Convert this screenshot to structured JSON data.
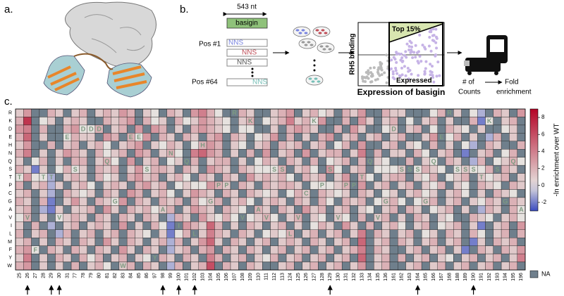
{
  "panel_labels": [
    "a.",
    "b.",
    "c."
  ],
  "schematic": {
    "length": "543 nt",
    "gene": "basigin",
    "first_position": "Pos #1",
    "last_position": "Pos #64",
    "codon": "NNS",
    "y_axis": "RH5 binding",
    "x_axis": "Expression of basigin",
    "gate_top": "Top 15%",
    "gate_expressed": "Expressed",
    "counts": [
      "# of",
      "Counts"
    ],
    "enrichment": [
      "Fold",
      "enrichment"
    ]
  },
  "heatmap": {
    "type": "heatmap",
    "positions": [
      25,
      26,
      27,
      28,
      29,
      30,
      31,
      77,
      78,
      79,
      80,
      81,
      82,
      83,
      84,
      85,
      86,
      97,
      98,
      99,
      100,
      101,
      102,
      103,
      104,
      105,
      106,
      107,
      108,
      109,
      110,
      111,
      112,
      113,
      124,
      125,
      126,
      127,
      128,
      129,
      130,
      131,
      132,
      133,
      134,
      135,
      136,
      161,
      162,
      163,
      164,
      165,
      166,
      167,
      168,
      188,
      189,
      190,
      191,
      192,
      193,
      194,
      195,
      196
    ],
    "residues": [
      "R",
      "K",
      "D",
      "E",
      "H",
      "N",
      "Q",
      "S",
      "T",
      "P",
      "C",
      "G",
      "A",
      "V",
      "I",
      "L",
      "M",
      "F",
      "Y",
      "W"
    ],
    "wild_type": [
      "T",
      "V",
      "F",
      "T",
      "T",
      "V",
      "E",
      "S",
      "D",
      "D",
      "D",
      "Q",
      "G",
      "W",
      "E",
      "E",
      "S",
      "Y",
      "A",
      "N",
      "I",
      "Q",
      "L",
      "H",
      "G",
      "P",
      "P",
      "R",
      "V",
      "K",
      "A",
      "V",
      "S",
      "S",
      "L",
      "V",
      "C",
      "K",
      "P",
      "S",
      "V",
      "P",
      "P",
      "T",
      "Q",
      "V",
      "G",
      "D",
      "S",
      "S",
      "S",
      "G",
      "Q",
      "E",
      "R",
      "S",
      "S",
      "S",
      "T",
      "K",
      "S",
      "G",
      "Q",
      "A"
    ],
    "values": [
      [
        1,
        3,
        null,
        null,
        2,
        1,
        null,
        1,
        2,
        null,
        1,
        2,
        1,
        3,
        2,
        null,
        1,
        0,
        null,
        2,
        1,
        null,
        3,
        4,
        2,
        0,
        null,
        null,
        2,
        1,
        null,
        null,
        1,
        2,
        3,
        null,
        1,
        2,
        0,
        1,
        null,
        2,
        1,
        3,
        null,
        null,
        2,
        1,
        1,
        null,
        null,
        null,
        0,
        2,
        null,
        1,
        null,
        0,
        -1,
        null,
        2,
        1,
        null,
        3
      ],
      [
        2,
        7,
        null,
        0,
        1,
        null,
        1,
        2,
        1,
        null,
        null,
        2,
        1,
        2,
        3,
        null,
        2,
        0,
        1,
        null,
        2,
        0,
        1,
        3,
        2,
        1,
        0,
        null,
        1,
        2,
        null,
        0,
        1,
        2,
        4,
        1,
        2,
        0,
        3,
        null,
        null,
        2,
        null,
        3,
        1,
        null,
        1,
        2,
        null,
        0,
        null,
        1,
        2,
        null,
        1,
        null,
        null,
        2,
        -2,
        0,
        null,
        1,
        2,
        null
      ],
      [
        3,
        4,
        null,
        2,
        null,
        null,
        2,
        3,
        0,
        0,
        2,
        null,
        1,
        2,
        null,
        3,
        null,
        3,
        2,
        null,
        1,
        null,
        2,
        3,
        2,
        1,
        0,
        null,
        0,
        0,
        null,
        null,
        1,
        null,
        2,
        3,
        2,
        1,
        null,
        null,
        2,
        null,
        3,
        1,
        null,
        null,
        0,
        1,
        null,
        1,
        2,
        null,
        0,
        null,
        2,
        1,
        0,
        null,
        1,
        null,
        null,
        0,
        1,
        null
      ],
      [
        2,
        5,
        null,
        1,
        null,
        null,
        0,
        2,
        1,
        1,
        null,
        3,
        2,
        null,
        2,
        0,
        3,
        null,
        2,
        1,
        null,
        2,
        1,
        null,
        2,
        3,
        null,
        2,
        1,
        null,
        0,
        1,
        3,
        null,
        2,
        null,
        1,
        null,
        2,
        3,
        null,
        1,
        2,
        null,
        1,
        2,
        null,
        1,
        2,
        null,
        null,
        1,
        3,
        null,
        0,
        2,
        null,
        1,
        null,
        -1,
        2,
        null,
        1,
        null
      ],
      [
        1,
        3,
        null,
        null,
        2,
        null,
        1,
        2,
        null,
        1,
        2,
        0,
        null,
        1,
        2,
        3,
        null,
        1,
        0,
        2,
        1,
        null,
        0,
        2,
        3,
        2,
        null,
        1,
        0,
        null,
        1,
        2,
        null,
        2,
        1,
        2,
        null,
        1,
        2,
        null,
        0,
        2,
        null,
        3,
        null,
        null,
        1,
        2,
        null,
        1,
        0,
        null,
        2,
        null,
        1,
        null,
        0,
        -1,
        null,
        2,
        1,
        null,
        null,
        2
      ],
      [
        2,
        4,
        null,
        1,
        null,
        1,
        3,
        2,
        1,
        null,
        2,
        0,
        1,
        2,
        null,
        3,
        2,
        null,
        1,
        2,
        0,
        null,
        4,
        5,
        3,
        2,
        null,
        1,
        null,
        2,
        null,
        3,
        null,
        1,
        2,
        null,
        3,
        null,
        1,
        2,
        2,
        null,
        1,
        4,
        null,
        2,
        null,
        1,
        1,
        null,
        2,
        0,
        null,
        1,
        2,
        null,
        -2,
        null,
        1,
        2,
        null,
        0,
        2,
        null
      ],
      [
        1,
        null,
        0,
        2,
        null,
        1,
        null,
        2,
        2,
        null,
        1,
        2,
        0,
        null,
        3,
        null,
        1,
        2,
        null,
        0,
        1,
        null,
        2,
        null,
        1,
        2,
        2,
        null,
        1,
        null,
        0,
        2,
        1,
        null,
        2,
        1,
        null,
        2,
        null,
        0,
        1,
        2,
        null,
        2,
        null,
        1,
        0,
        null,
        null,
        2,
        null,
        1,
        0,
        null,
        2,
        1,
        null,
        -1,
        2,
        null,
        0,
        1,
        2,
        0
      ],
      [
        2,
        1,
        -2,
        1,
        null,
        0,
        2,
        0,
        1,
        null,
        2,
        1,
        2,
        null,
        1,
        3,
        0,
        2,
        2,
        1,
        null,
        2,
        1,
        null,
        3,
        2,
        1,
        null,
        2,
        1,
        0,
        0,
        0,
        2,
        null,
        1,
        2,
        0,
        null,
        3,
        0,
        null,
        1,
        2,
        null,
        0,
        0,
        0,
        1,
        null,
        0,
        2,
        1,
        0,
        null,
        0,
        1,
        0,
        0,
        2,
        null,
        2,
        1,
        null
      ],
      [
        0,
        3,
        0,
        0,
        -1,
        null,
        1,
        2,
        1,
        null,
        2,
        0,
        1,
        null,
        2,
        3,
        1,
        2,
        null,
        1,
        2,
        0,
        null,
        2,
        1,
        null,
        2,
        1,
        null,
        3,
        1,
        2,
        1,
        2,
        0,
        null,
        2,
        1,
        2,
        null,
        1,
        3,
        null,
        2,
        0,
        null,
        1,
        2,
        2,
        null,
        1,
        0,
        2,
        null,
        0,
        1,
        2,
        null,
        1,
        0,
        1,
        2,
        null,
        1
      ],
      [
        2,
        null,
        1,
        2,
        -1,
        1,
        null,
        1,
        2,
        0,
        null,
        1,
        2,
        1,
        null,
        2,
        3,
        1,
        2,
        null,
        0,
        1,
        0,
        0,
        3,
        2,
        1,
        null,
        2,
        1,
        null,
        2,
        1,
        2,
        2,
        1,
        null,
        0,
        0,
        0,
        1,
        2,
        null,
        3,
        null,
        1,
        2,
        null,
        1,
        2,
        null,
        1,
        0,
        2,
        null,
        1,
        0,
        null,
        2,
        1,
        0,
        null,
        2,
        1
      ],
      [
        1,
        2,
        null,
        1,
        -1,
        null,
        2,
        1,
        0,
        1,
        null,
        2,
        1,
        null,
        3,
        2,
        null,
        1,
        2,
        0,
        null,
        1,
        3,
        2,
        1,
        null,
        2,
        1,
        null,
        2,
        1,
        0,
        1,
        null,
        0,
        2,
        1,
        null,
        2,
        1,
        0,
        1,
        null,
        2,
        1,
        null,
        0,
        1,
        null,
        1,
        2,
        0,
        1,
        null,
        1,
        2,
        0,
        null,
        1,
        null,
        2,
        1,
        0,
        null
      ],
      [
        2,
        1,
        null,
        2,
        -2,
        null,
        1,
        3,
        1,
        null,
        2,
        1,
        0,
        3,
        null,
        2,
        1,
        null,
        2,
        1,
        2,
        null,
        2,
        0,
        1,
        2,
        null,
        1,
        2,
        0,
        null,
        1,
        2,
        1,
        null,
        2,
        1,
        null,
        2,
        0,
        null,
        2,
        1,
        2,
        null,
        0,
        1,
        2,
        0,
        null,
        0,
        1,
        2,
        null,
        1,
        2,
        null,
        1,
        0,
        2,
        1,
        null,
        2,
        1
      ],
      [
        1,
        2,
        null,
        -1,
        -2,
        1,
        null,
        1,
        1,
        2,
        null,
        3,
        1,
        null,
        2,
        1,
        2,
        0,
        1,
        2,
        null,
        1,
        3,
        2,
        1,
        null,
        2,
        1,
        0,
        null,
        2,
        1,
        null,
        2,
        1,
        null,
        3,
        1,
        2,
        null,
        1,
        2,
        null,
        1,
        0,
        null,
        1,
        2,
        null,
        2,
        1,
        null,
        0,
        1,
        2,
        null,
        1,
        null,
        -1,
        2,
        1,
        null,
        2,
        0
      ],
      [
        0,
        2,
        null,
        1,
        null,
        0,
        1,
        2,
        1,
        null,
        2,
        1,
        null,
        2,
        1,
        null,
        2,
        1,
        null,
        -1,
        2,
        1,
        null,
        3,
        1,
        0,
        2,
        0,
        null,
        0,
        1,
        2,
        0,
        null,
        1,
        2,
        null,
        1,
        0,
        null,
        1,
        0,
        null,
        2,
        null,
        1,
        2,
        null,
        1,
        null,
        2,
        1,
        null,
        1,
        0,
        null,
        null,
        2,
        1,
        0,
        null,
        1,
        2,
        0
      ],
      [
        1,
        null,
        2,
        null,
        -1,
        null,
        1,
        2,
        null,
        1,
        2,
        1,
        null,
        3,
        null,
        1,
        null,
        2,
        0,
        -2,
        null,
        3,
        2,
        1,
        5,
        2,
        null,
        1,
        null,
        2,
        1,
        null,
        1,
        2,
        null,
        1,
        null,
        0,
        2,
        1,
        null,
        3,
        1,
        null,
        2,
        null,
        1,
        2,
        0,
        null,
        1,
        2,
        null,
        0,
        1,
        2,
        null,
        1,
        -2,
        null,
        1,
        2,
        null,
        3
      ],
      [
        2,
        null,
        1,
        2,
        null,
        -1,
        2,
        null,
        1,
        2,
        null,
        1,
        2,
        null,
        2,
        1,
        0,
        null,
        1,
        -2,
        0,
        2,
        null,
        1,
        4,
        2,
        1,
        null,
        2,
        1,
        null,
        0,
        1,
        0,
        2,
        null,
        1,
        2,
        null,
        1,
        2,
        null,
        1,
        4,
        null,
        2,
        1,
        null,
        1,
        2,
        null,
        0,
        1,
        null,
        2,
        1,
        null,
        2,
        0,
        null,
        1,
        2,
        null,
        2
      ],
      [
        1,
        2,
        null,
        1,
        null,
        2,
        1,
        null,
        2,
        1,
        null,
        3,
        1,
        null,
        2,
        1,
        null,
        1,
        2,
        -1,
        2,
        null,
        1,
        3,
        5,
        1,
        null,
        2,
        1,
        null,
        1,
        2,
        null,
        1,
        2,
        1,
        null,
        2,
        1,
        null,
        1,
        2,
        null,
        5,
        null,
        1,
        2,
        null,
        2,
        1,
        null,
        1,
        2,
        null,
        1,
        2,
        null,
        -2,
        1,
        null,
        2,
        1,
        2,
        null
      ],
      [
        2,
        3,
        0,
        null,
        2,
        1,
        null,
        2,
        1,
        null,
        2,
        1,
        null,
        3,
        1,
        null,
        2,
        1,
        null,
        -1,
        1,
        2,
        null,
        2,
        3,
        null,
        2,
        1,
        null,
        2,
        1,
        null,
        1,
        2,
        null,
        1,
        2,
        null,
        1,
        2,
        null,
        1,
        2,
        4,
        null,
        2,
        1,
        null,
        null,
        1,
        2,
        null,
        1,
        2,
        null,
        1,
        -2,
        null,
        2,
        1,
        null,
        2,
        1,
        3
      ],
      [
        1,
        4,
        null,
        1,
        null,
        2,
        1,
        null,
        2,
        0,
        2,
        null,
        1,
        2,
        null,
        1,
        0,
        null,
        2,
        1,
        null,
        2,
        1,
        null,
        4,
        2,
        null,
        1,
        2,
        null,
        1,
        0,
        2,
        null,
        1,
        2,
        null,
        1,
        2,
        null,
        1,
        2,
        null,
        5,
        null,
        1,
        2,
        null,
        2,
        null,
        1,
        2,
        null,
        1,
        0,
        null,
        1,
        2,
        null,
        1,
        2,
        null,
        1,
        4
      ],
      [
        2,
        3,
        null,
        1,
        null,
        1,
        null,
        2,
        null,
        1,
        2,
        0,
        null,
        1,
        2,
        null,
        2,
        1,
        null,
        -1,
        2,
        null,
        1,
        2,
        6,
        null,
        2,
        1,
        null,
        2,
        1,
        null,
        null,
        1,
        2,
        null,
        1,
        2,
        null,
        1,
        2,
        null,
        1,
        3,
        null,
        1,
        2,
        null,
        null,
        1,
        2,
        null,
        1,
        2,
        null,
        1,
        2,
        null,
        1,
        2,
        null,
        1,
        2,
        null
      ]
    ],
    "arrow_positions": [
      26,
      29,
      30,
      98,
      100,
      102,
      129,
      164,
      190
    ],
    "clim": [
      -3,
      9
    ],
    "colorbar_ticks": [
      -2,
      0,
      2,
      4,
      6,
      8
    ],
    "colorbar_label": "-ln enrichment over WT",
    "na_label": "NA"
  }
}
